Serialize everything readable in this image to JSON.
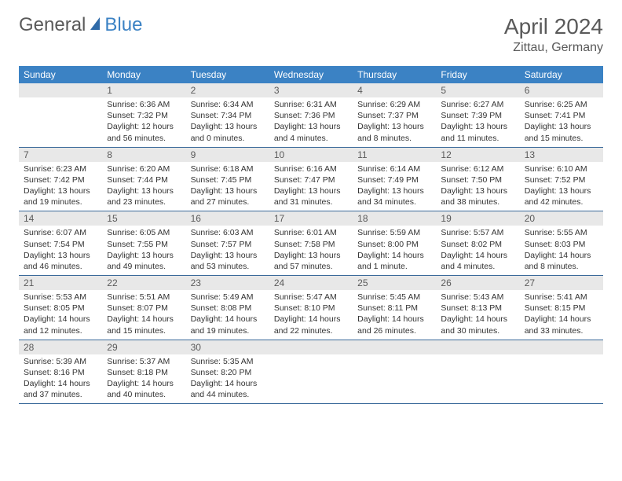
{
  "logo": {
    "general": "General",
    "blue": "Blue"
  },
  "title": "April 2024",
  "location": "Zittau, Germany",
  "colors": {
    "header_bg": "#3b82c4",
    "text": "#333333",
    "muted": "#5a5a5a",
    "numbar_bg": "#e8e8e8",
    "rule": "#3b6a9a"
  },
  "day_headers": [
    "Sunday",
    "Monday",
    "Tuesday",
    "Wednesday",
    "Thursday",
    "Friday",
    "Saturday"
  ],
  "weeks": [
    [
      {
        "n": "",
        "sr": "",
        "ss": "",
        "dl": ""
      },
      {
        "n": "1",
        "sr": "Sunrise: 6:36 AM",
        "ss": "Sunset: 7:32 PM",
        "dl": "Daylight: 12 hours and 56 minutes."
      },
      {
        "n": "2",
        "sr": "Sunrise: 6:34 AM",
        "ss": "Sunset: 7:34 PM",
        "dl": "Daylight: 13 hours and 0 minutes."
      },
      {
        "n": "3",
        "sr": "Sunrise: 6:31 AM",
        "ss": "Sunset: 7:36 PM",
        "dl": "Daylight: 13 hours and 4 minutes."
      },
      {
        "n": "4",
        "sr": "Sunrise: 6:29 AM",
        "ss": "Sunset: 7:37 PM",
        "dl": "Daylight: 13 hours and 8 minutes."
      },
      {
        "n": "5",
        "sr": "Sunrise: 6:27 AM",
        "ss": "Sunset: 7:39 PM",
        "dl": "Daylight: 13 hours and 11 minutes."
      },
      {
        "n": "6",
        "sr": "Sunrise: 6:25 AM",
        "ss": "Sunset: 7:41 PM",
        "dl": "Daylight: 13 hours and 15 minutes."
      }
    ],
    [
      {
        "n": "7",
        "sr": "Sunrise: 6:23 AM",
        "ss": "Sunset: 7:42 PM",
        "dl": "Daylight: 13 hours and 19 minutes."
      },
      {
        "n": "8",
        "sr": "Sunrise: 6:20 AM",
        "ss": "Sunset: 7:44 PM",
        "dl": "Daylight: 13 hours and 23 minutes."
      },
      {
        "n": "9",
        "sr": "Sunrise: 6:18 AM",
        "ss": "Sunset: 7:45 PM",
        "dl": "Daylight: 13 hours and 27 minutes."
      },
      {
        "n": "10",
        "sr": "Sunrise: 6:16 AM",
        "ss": "Sunset: 7:47 PM",
        "dl": "Daylight: 13 hours and 31 minutes."
      },
      {
        "n": "11",
        "sr": "Sunrise: 6:14 AM",
        "ss": "Sunset: 7:49 PM",
        "dl": "Daylight: 13 hours and 34 minutes."
      },
      {
        "n": "12",
        "sr": "Sunrise: 6:12 AM",
        "ss": "Sunset: 7:50 PM",
        "dl": "Daylight: 13 hours and 38 minutes."
      },
      {
        "n": "13",
        "sr": "Sunrise: 6:10 AM",
        "ss": "Sunset: 7:52 PM",
        "dl": "Daylight: 13 hours and 42 minutes."
      }
    ],
    [
      {
        "n": "14",
        "sr": "Sunrise: 6:07 AM",
        "ss": "Sunset: 7:54 PM",
        "dl": "Daylight: 13 hours and 46 minutes."
      },
      {
        "n": "15",
        "sr": "Sunrise: 6:05 AM",
        "ss": "Sunset: 7:55 PM",
        "dl": "Daylight: 13 hours and 49 minutes."
      },
      {
        "n": "16",
        "sr": "Sunrise: 6:03 AM",
        "ss": "Sunset: 7:57 PM",
        "dl": "Daylight: 13 hours and 53 minutes."
      },
      {
        "n": "17",
        "sr": "Sunrise: 6:01 AM",
        "ss": "Sunset: 7:58 PM",
        "dl": "Daylight: 13 hours and 57 minutes."
      },
      {
        "n": "18",
        "sr": "Sunrise: 5:59 AM",
        "ss": "Sunset: 8:00 PM",
        "dl": "Daylight: 14 hours and 1 minute."
      },
      {
        "n": "19",
        "sr": "Sunrise: 5:57 AM",
        "ss": "Sunset: 8:02 PM",
        "dl": "Daylight: 14 hours and 4 minutes."
      },
      {
        "n": "20",
        "sr": "Sunrise: 5:55 AM",
        "ss": "Sunset: 8:03 PM",
        "dl": "Daylight: 14 hours and 8 minutes."
      }
    ],
    [
      {
        "n": "21",
        "sr": "Sunrise: 5:53 AM",
        "ss": "Sunset: 8:05 PM",
        "dl": "Daylight: 14 hours and 12 minutes."
      },
      {
        "n": "22",
        "sr": "Sunrise: 5:51 AM",
        "ss": "Sunset: 8:07 PM",
        "dl": "Daylight: 14 hours and 15 minutes."
      },
      {
        "n": "23",
        "sr": "Sunrise: 5:49 AM",
        "ss": "Sunset: 8:08 PM",
        "dl": "Daylight: 14 hours and 19 minutes."
      },
      {
        "n": "24",
        "sr": "Sunrise: 5:47 AM",
        "ss": "Sunset: 8:10 PM",
        "dl": "Daylight: 14 hours and 22 minutes."
      },
      {
        "n": "25",
        "sr": "Sunrise: 5:45 AM",
        "ss": "Sunset: 8:11 PM",
        "dl": "Daylight: 14 hours and 26 minutes."
      },
      {
        "n": "26",
        "sr": "Sunrise: 5:43 AM",
        "ss": "Sunset: 8:13 PM",
        "dl": "Daylight: 14 hours and 30 minutes."
      },
      {
        "n": "27",
        "sr": "Sunrise: 5:41 AM",
        "ss": "Sunset: 8:15 PM",
        "dl": "Daylight: 14 hours and 33 minutes."
      }
    ],
    [
      {
        "n": "28",
        "sr": "Sunrise: 5:39 AM",
        "ss": "Sunset: 8:16 PM",
        "dl": "Daylight: 14 hours and 37 minutes."
      },
      {
        "n": "29",
        "sr": "Sunrise: 5:37 AM",
        "ss": "Sunset: 8:18 PM",
        "dl": "Daylight: 14 hours and 40 minutes."
      },
      {
        "n": "30",
        "sr": "Sunrise: 5:35 AM",
        "ss": "Sunset: 8:20 PM",
        "dl": "Daylight: 14 hours and 44 minutes."
      },
      {
        "n": "",
        "sr": "",
        "ss": "",
        "dl": ""
      },
      {
        "n": "",
        "sr": "",
        "ss": "",
        "dl": ""
      },
      {
        "n": "",
        "sr": "",
        "ss": "",
        "dl": ""
      },
      {
        "n": "",
        "sr": "",
        "ss": "",
        "dl": ""
      }
    ]
  ]
}
